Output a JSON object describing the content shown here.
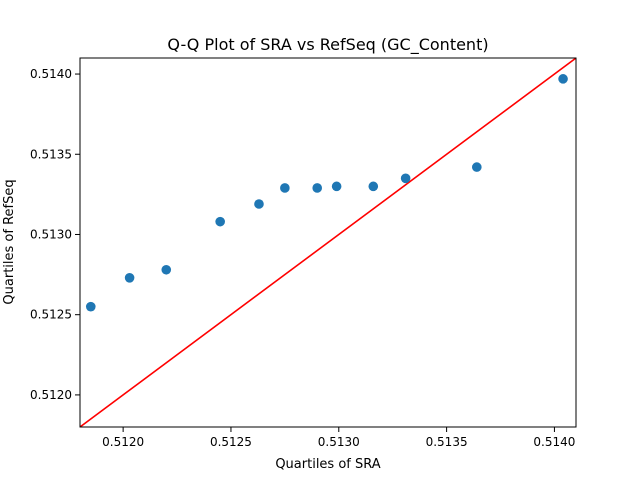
{
  "chart_data": {
    "type": "scatter",
    "title": "Q-Q Plot of SRA vs RefSeq (GC_Content)",
    "xlabel": "Quartiles of SRA",
    "ylabel": "Quartiles of RefSeq",
    "xlim": [
      0.5118,
      0.5141
    ],
    "ylim": [
      0.5118,
      0.5141
    ],
    "x_ticks": [
      0.512,
      0.5125,
      0.513,
      0.5135,
      0.514
    ],
    "x_tick_labels": [
      "0.5120",
      "0.5125",
      "0.5130",
      "0.5135",
      "0.5140"
    ],
    "y_ticks": [
      0.512,
      0.5125,
      0.513,
      0.5135,
      0.514
    ],
    "y_tick_labels": [
      "0.5120",
      "0.5125",
      "0.5130",
      "0.5135",
      "0.5140"
    ],
    "grid": false,
    "legend": "none",
    "points": {
      "x": [
        0.51185,
        0.51203,
        0.5122,
        0.51245,
        0.51263,
        0.51275,
        0.5129,
        0.51299,
        0.51316,
        0.51331,
        0.51364,
        0.51404
      ],
      "y": [
        0.51255,
        0.51273,
        0.51278,
        0.51308,
        0.51319,
        0.51329,
        0.51329,
        0.5133,
        0.5133,
        0.51335,
        0.51342,
        0.51397
      ],
      "color": "#1f77b4"
    },
    "reference_line": {
      "slope": 1,
      "intercept": 0,
      "color": "#ff0000"
    }
  }
}
